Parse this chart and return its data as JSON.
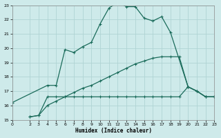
{
  "xlabel": "Humidex (Indice chaleur)",
  "bg_color": "#ceeaea",
  "grid_color": "#b0d4d4",
  "line_color": "#1a6b5a",
  "curve1_x": [
    0,
    4,
    5,
    6,
    7,
    8,
    9,
    10,
    11,
    12,
    13,
    14,
    15,
    16,
    17,
    18,
    20,
    21,
    22,
    23
  ],
  "curve1_y": [
    16.2,
    17.4,
    17.4,
    19.9,
    19.7,
    20.1,
    20.4,
    21.7,
    22.8,
    23.2,
    22.9,
    22.9,
    22.1,
    21.9,
    22.2,
    21.1,
    17.3,
    17.0,
    16.6,
    16.6
  ],
  "curve3_x": [
    2,
    3,
    4,
    5,
    6,
    7,
    8,
    9,
    10,
    11,
    12,
    13,
    14,
    15,
    16,
    17,
    18,
    19,
    20,
    21,
    22,
    23
  ],
  "curve3_y": [
    15.2,
    15.3,
    16.0,
    16.3,
    16.6,
    16.9,
    17.2,
    17.4,
    17.7,
    18.0,
    18.3,
    18.6,
    18.9,
    19.1,
    19.3,
    19.4,
    19.4,
    19.4,
    17.3,
    17.0,
    16.6,
    16.6
  ],
  "curve4_x": [
    2,
    3,
    4,
    5,
    6,
    7,
    8,
    9,
    10,
    11,
    12,
    13,
    14,
    15,
    16,
    17,
    18,
    19,
    20,
    21,
    22,
    23
  ],
  "curve4_y": [
    15.2,
    15.3,
    16.6,
    16.6,
    16.6,
    16.6,
    16.6,
    16.6,
    16.6,
    16.6,
    16.6,
    16.6,
    16.6,
    16.6,
    16.6,
    16.6,
    16.6,
    16.6,
    17.3,
    17.0,
    16.6,
    16.6
  ],
  "xlim": [
    0,
    23
  ],
  "ylim": [
    15,
    23
  ],
  "yticks": [
    15,
    16,
    17,
    18,
    19,
    20,
    21,
    22,
    23
  ],
  "xticks": [
    0,
    2,
    3,
    4,
    5,
    6,
    7,
    8,
    9,
    10,
    11,
    12,
    13,
    14,
    15,
    16,
    17,
    18,
    19,
    20,
    21,
    22,
    23
  ]
}
